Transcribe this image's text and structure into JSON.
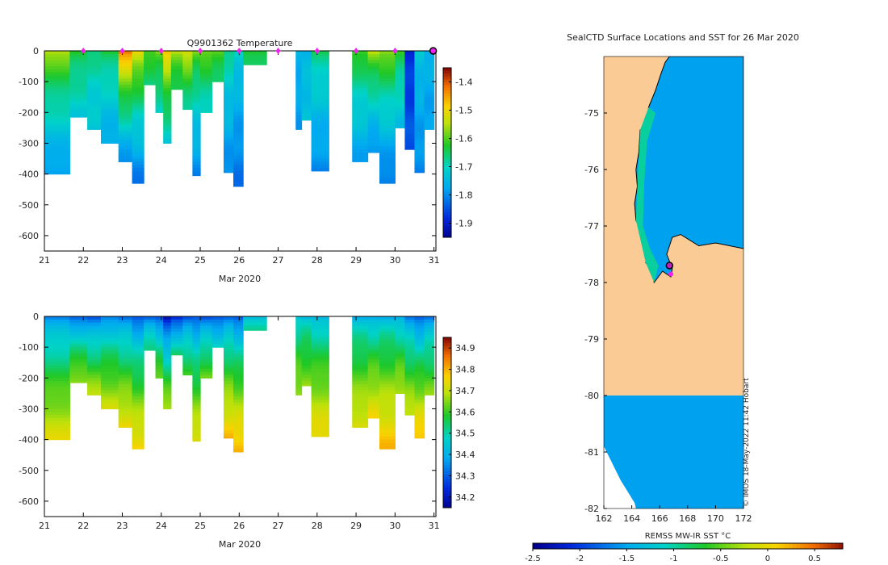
{
  "chart_data": [
    {
      "type": "heatmap",
      "id": "temperature-section",
      "title": "Q9901362  Temperature",
      "xlabel": "Mar 2020",
      "ylabel": "",
      "xlim": [
        21,
        31.05
      ],
      "ylim": [
        -650,
        0
      ],
      "xticks": [
        21,
        22,
        23,
        24,
        25,
        26,
        27,
        28,
        29,
        30,
        31
      ],
      "yticks": [
        0,
        -100,
        -200,
        -300,
        -400,
        -500,
        -600
      ],
      "surface_markers": [
        22,
        23,
        24,
        25,
        26,
        27,
        28,
        29,
        30
      ],
      "end_marker": 30.98,
      "colorbar": {
        "min": -1.95,
        "max": -1.35,
        "ticks": [
          -1.4,
          -1.5,
          -1.6,
          -1.7,
          -1.8,
          -1.9
        ],
        "tick_labels": [
          "-1.4",
          "-1.5",
          "-1.6",
          "-1.7",
          "-1.8",
          "-1.9"
        ]
      },
      "profiles": [
        {
          "x0": 21.0,
          "x1": 21.65,
          "depth": 400,
          "surface": -1.55,
          "deep": -1.79
        },
        {
          "x0": 21.65,
          "x1": 22.1,
          "depth": 215,
          "surface": -1.62,
          "deep": -1.72
        },
        {
          "x0": 22.1,
          "x1": 22.45,
          "depth": 255,
          "surface": -1.66,
          "deep": -1.73
        },
        {
          "x0": 22.45,
          "x1": 22.9,
          "depth": 300,
          "surface": -1.63,
          "deep": -1.77
        },
        {
          "x0": 22.9,
          "x1": 23.25,
          "depth": 360,
          "surface": -1.42,
          "deep": -1.8
        },
        {
          "x0": 23.25,
          "x1": 23.55,
          "depth": 430,
          "surface": -1.5,
          "deep": -1.82
        },
        {
          "x0": 23.55,
          "x1": 23.85,
          "depth": 110,
          "surface": -1.6,
          "deep": -1.66
        },
        {
          "x0": 23.85,
          "x1": 24.05,
          "depth": 200,
          "surface": -1.58,
          "deep": -1.7
        },
        {
          "x0": 24.05,
          "x1": 24.25,
          "depth": 300,
          "surface": -1.47,
          "deep": -1.72
        },
        {
          "x0": 24.25,
          "x1": 24.55,
          "depth": 125,
          "surface": -1.55,
          "deep": -1.65
        },
        {
          "x0": 24.55,
          "x1": 24.8,
          "depth": 190,
          "surface": -1.52,
          "deep": -1.68
        },
        {
          "x0": 24.8,
          "x1": 25.0,
          "depth": 405,
          "surface": -1.58,
          "deep": -1.8
        },
        {
          "x0": 25.0,
          "x1": 25.3,
          "depth": 200,
          "surface": -1.58,
          "deep": -1.7
        },
        {
          "x0": 25.3,
          "x1": 25.6,
          "depth": 100,
          "surface": -1.6,
          "deep": -1.65
        },
        {
          "x0": 25.6,
          "x1": 25.85,
          "depth": 395,
          "surface": -1.66,
          "deep": -1.8
        },
        {
          "x0": 25.85,
          "x1": 26.1,
          "depth": 440,
          "surface": -1.7,
          "deep": -1.82
        },
        {
          "x0": 26.1,
          "x1": 26.7,
          "depth": 45,
          "surface": -1.62,
          "deep": -1.66
        },
        {
          "x0": 27.45,
          "x1": 27.6,
          "depth": 255,
          "surface": -1.75,
          "deep": -1.78
        },
        {
          "x0": 27.6,
          "x1": 27.85,
          "depth": 225,
          "surface": -1.75,
          "deep": -1.73
        },
        {
          "x0": 27.85,
          "x1": 28.3,
          "depth": 390,
          "surface": -1.65,
          "deep": -1.8
        },
        {
          "x0": 28.9,
          "x1": 29.3,
          "depth": 360,
          "surface": -1.6,
          "deep": -1.78
        },
        {
          "x0": 29.3,
          "x1": 29.6,
          "depth": 330,
          "surface": -1.55,
          "deep": -1.8
        },
        {
          "x0": 29.6,
          "x1": 30.0,
          "depth": 430,
          "surface": -1.56,
          "deep": -1.82
        },
        {
          "x0": 30.0,
          "x1": 30.25,
          "depth": 250,
          "surface": -1.62,
          "deep": -1.74
        },
        {
          "x0": 30.25,
          "x1": 30.5,
          "depth": 320,
          "surface": -1.88,
          "deep": -1.84
        },
        {
          "x0": 30.5,
          "x1": 30.75,
          "depth": 395,
          "surface": -1.72,
          "deep": -1.8
        },
        {
          "x0": 30.75,
          "x1": 31.0,
          "depth": 255,
          "surface": -1.75,
          "deep": -1.78
        }
      ]
    },
    {
      "type": "heatmap",
      "id": "salinity-section",
      "title": "",
      "xlabel": "Mar 2020",
      "ylabel": "",
      "xlim": [
        21,
        31.05
      ],
      "ylim": [
        -650,
        0
      ],
      "xticks": [
        21,
        22,
        23,
        24,
        25,
        26,
        27,
        28,
        29,
        30,
        31
      ],
      "yticks": [
        0,
        -100,
        -200,
        -300,
        -400,
        -500,
        -600
      ],
      "colorbar": {
        "min": 34.15,
        "max": 34.95,
        "ticks": [
          34.9,
          34.8,
          34.7,
          34.6,
          34.5,
          34.4,
          34.3,
          34.2
        ],
        "tick_labels": [
          "34.9",
          "34.8",
          "34.7",
          "34.6",
          "34.5",
          "34.4",
          "34.3",
          "34.2"
        ]
      },
      "profiles": [
        {
          "x0": 21.0,
          "x1": 21.65,
          "depth": 400,
          "surface": 34.35,
          "deep": 34.74
        },
        {
          "x0": 21.65,
          "x1": 22.1,
          "depth": 215,
          "surface": 34.32,
          "deep": 34.68
        },
        {
          "x0": 22.1,
          "x1": 22.45,
          "depth": 255,
          "surface": 34.3,
          "deep": 34.7
        },
        {
          "x0": 22.45,
          "x1": 22.9,
          "depth": 300,
          "surface": 34.35,
          "deep": 34.72
        },
        {
          "x0": 22.9,
          "x1": 23.25,
          "depth": 360,
          "surface": 34.33,
          "deep": 34.76
        },
        {
          "x0": 23.25,
          "x1": 23.55,
          "depth": 430,
          "surface": 34.3,
          "deep": 34.78
        },
        {
          "x0": 23.55,
          "x1": 23.85,
          "depth": 110,
          "surface": 34.32,
          "deep": 34.55
        },
        {
          "x0": 23.85,
          "x1": 24.05,
          "depth": 200,
          "surface": 34.3,
          "deep": 34.65
        },
        {
          "x0": 24.05,
          "x1": 24.25,
          "depth": 300,
          "surface": 34.2,
          "deep": 34.7
        },
        {
          "x0": 24.25,
          "x1": 24.55,
          "depth": 125,
          "surface": 34.25,
          "deep": 34.55
        },
        {
          "x0": 24.55,
          "x1": 24.8,
          "depth": 190,
          "surface": 34.3,
          "deep": 34.62
        },
        {
          "x0": 24.8,
          "x1": 25.0,
          "depth": 405,
          "surface": 34.3,
          "deep": 34.75
        },
        {
          "x0": 25.0,
          "x1": 25.3,
          "depth": 200,
          "surface": 34.3,
          "deep": 34.65
        },
        {
          "x0": 25.3,
          "x1": 25.6,
          "depth": 100,
          "surface": 34.3,
          "deep": 34.5
        },
        {
          "x0": 25.6,
          "x1": 25.85,
          "depth": 395,
          "surface": 34.33,
          "deep": 34.8
        },
        {
          "x0": 25.85,
          "x1": 26.1,
          "depth": 440,
          "surface": 34.3,
          "deep": 34.82
        },
        {
          "x0": 26.1,
          "x1": 26.7,
          "depth": 45,
          "surface": 34.45,
          "deep": 34.52
        },
        {
          "x0": 27.45,
          "x1": 27.6,
          "depth": 255,
          "surface": 34.45,
          "deep": 34.68
        },
        {
          "x0": 27.6,
          "x1": 27.85,
          "depth": 225,
          "surface": 34.45,
          "deep": 34.66
        },
        {
          "x0": 27.85,
          "x1": 28.3,
          "depth": 390,
          "surface": 34.42,
          "deep": 34.76
        },
        {
          "x0": 28.9,
          "x1": 29.3,
          "depth": 360,
          "surface": 34.42,
          "deep": 34.74
        },
        {
          "x0": 29.3,
          "x1": 29.6,
          "depth": 330,
          "surface": 34.4,
          "deep": 34.76
        },
        {
          "x0": 29.6,
          "x1": 30.0,
          "depth": 430,
          "surface": 34.42,
          "deep": 34.8
        },
        {
          "x0": 30.0,
          "x1": 30.25,
          "depth": 250,
          "surface": 34.4,
          "deep": 34.7
        },
        {
          "x0": 30.25,
          "x1": 30.5,
          "depth": 320,
          "surface": 34.35,
          "deep": 34.72
        },
        {
          "x0": 30.5,
          "x1": 30.75,
          "depth": 395,
          "surface": 34.3,
          "deep": 34.8
        },
        {
          "x0": 30.75,
          "x1": 31.0,
          "depth": 255,
          "surface": 34.35,
          "deep": 34.66
        }
      ]
    },
    {
      "type": "heatmap",
      "id": "sst-map",
      "title": "SealCTD Surface Locations and SST for 26 Mar 2020",
      "xlim": [
        162,
        172
      ],
      "ylim": [
        -82,
        -74
      ],
      "xticks": [
        162,
        164,
        166,
        168,
        170,
        172
      ],
      "yticks": [
        -75,
        -76,
        -77,
        -78,
        -79,
        -80,
        -81,
        -82
      ],
      "land_color": "#fbcb96",
      "credit": "© IMOS 18-May-2022 11:42 Hobart",
      "colorbar": {
        "label": "REMSS MW-IR SST °C",
        "min": -2.5,
        "max": 0.8,
        "ticks": [
          -2.5,
          -2,
          -1.5,
          -1,
          -0.5,
          0,
          0.5
        ],
        "tick_labels": [
          "-2.5",
          "-2",
          "-1.5",
          "-1",
          "-0.5",
          "0",
          "0.5"
        ]
      },
      "ocean_sst": -1.55,
      "shelf_sst": -1.0,
      "surface_location": {
        "lon": 166.7,
        "lat": -77.7
      },
      "track_end": {
        "lon": 166.8,
        "lat": -77.85
      }
    }
  ]
}
